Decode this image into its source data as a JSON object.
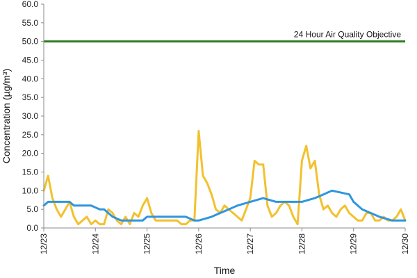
{
  "chart_data": {
    "type": "line",
    "title": "",
    "xlabel": "Time",
    "ylabel": "Concentration (µg/m³)",
    "ylim": [
      0,
      60
    ],
    "yticks": [
      "0.0",
      "5.0",
      "10.0",
      "15.0",
      "20.0",
      "25.0",
      "30.0",
      "35.0",
      "40.0",
      "45.0",
      "50.0",
      "55.0",
      "60.0"
    ],
    "xlim": [
      "12/23",
      "12/30"
    ],
    "xticks": [
      "12/23",
      "12/24",
      "12/25",
      "12/26",
      "12/27",
      "12/28",
      "12/29",
      "12/30"
    ],
    "grid": false,
    "objective": {
      "value": 50,
      "label": "24 Hour Air Quality Objective",
      "color": "#2e7d1e"
    },
    "series": [
      {
        "color": "#f2c12e",
        "kind": "hourly",
        "x": [
          "12/23 00:00",
          "12/23 02:00",
          "12/23 04:00",
          "12/23 06:00",
          "12/23 08:00",
          "12/23 10:00",
          "12/23 12:00",
          "12/23 14:00",
          "12/23 16:00",
          "12/23 18:00",
          "12/23 20:00",
          "12/23 22:00",
          "12/24 00:00",
          "12/24 02:00",
          "12/24 04:00",
          "12/24 06:00",
          "12/24 08:00",
          "12/24 10:00",
          "12/24 12:00",
          "12/24 14:00",
          "12/24 16:00",
          "12/24 18:00",
          "12/24 20:00",
          "12/24 22:00",
          "12/25 00:00",
          "12/25 02:00",
          "12/25 04:00",
          "12/25 06:00",
          "12/25 08:00",
          "12/25 10:00",
          "12/25 12:00",
          "12/25 14:00",
          "12/25 16:00",
          "12/25 18:00",
          "12/25 20:00",
          "12/25 22:00",
          "12/26 00:00",
          "12/26 02:00",
          "12/26 04:00",
          "12/26 06:00",
          "12/26 08:00",
          "12/26 10:00",
          "12/26 12:00",
          "12/26 14:00",
          "12/26 16:00",
          "12/26 18:00",
          "12/26 20:00",
          "12/26 22:00",
          "12/27 00:00",
          "12/27 02:00",
          "12/27 04:00",
          "12/27 06:00",
          "12/27 08:00",
          "12/27 10:00",
          "12/27 12:00",
          "12/27 14:00",
          "12/27 16:00",
          "12/27 18:00",
          "12/27 20:00",
          "12/27 22:00",
          "12/28 00:00",
          "12/28 02:00",
          "12/28 04:00",
          "12/28 06:00",
          "12/28 08:00",
          "12/28 10:00",
          "12/28 12:00",
          "12/28 14:00",
          "12/28 16:00",
          "12/28 18:00",
          "12/28 20:00",
          "12/28 22:00",
          "12/29 00:00",
          "12/29 02:00",
          "12/29 04:00",
          "12/29 06:00",
          "12/29 08:00",
          "12/29 10:00",
          "12/29 12:00",
          "12/29 14:00",
          "12/29 16:00",
          "12/29 18:00",
          "12/29 20:00",
          "12/29 22:00",
          "12/30 00:00"
        ],
        "values": [
          10,
          14,
          8,
          5,
          3,
          5,
          7,
          3,
          1,
          2,
          3,
          1,
          2,
          1,
          1,
          5,
          4,
          2,
          1,
          3,
          1,
          4,
          3,
          6,
          8,
          4,
          2,
          2,
          2,
          2,
          2,
          2,
          1,
          1,
          2,
          2,
          26,
          14,
          12,
          9,
          5,
          4,
          6,
          5,
          4,
          3,
          2,
          5,
          8,
          18,
          17,
          17,
          6,
          3,
          4,
          6,
          7,
          6,
          3,
          1,
          18,
          22,
          16,
          18,
          9,
          5,
          6,
          4,
          3,
          5,
          6,
          4,
          3,
          2,
          2,
          4,
          4,
          2,
          2,
          3,
          2,
          2,
          3,
          5,
          2
        ]
      },
      {
        "color": "#2f95de",
        "kind": "24-hour rolling",
        "x": [
          "12/23 00:00",
          "12/23 02:00",
          "12/23 12:00",
          "12/23 14:00",
          "12/23 22:00",
          "12/24 02:00",
          "12/24 04:00",
          "12/24 06:00",
          "12/24 08:00",
          "12/24 12:00",
          "12/24 18:00",
          "12/24 22:00",
          "12/25 00:00",
          "12/25 06:00",
          "12/25 12:00",
          "12/25 18:00",
          "12/25 22:00",
          "12/26 00:00",
          "12/26 06:00",
          "12/26 10:00",
          "12/26 14:00",
          "12/26 18:00",
          "12/27 00:00",
          "12/27 06:00",
          "12/27 12:00",
          "12/27 18:00",
          "12/28 00:00",
          "12/28 06:00",
          "12/28 10:00",
          "12/28 14:00",
          "12/28 22:00",
          "12/29 00:00",
          "12/29 04:00",
          "12/29 08:00",
          "12/29 12:00",
          "12/29 18:00",
          "12/30 00:00"
        ],
        "values": [
          6,
          7,
          7,
          6,
          6,
          5,
          5,
          4,
          3,
          2,
          2,
          2,
          3,
          3,
          3,
          3,
          2,
          2,
          3,
          4,
          5,
          6,
          7,
          8,
          7,
          7,
          7,
          8,
          9,
          10,
          9,
          7,
          5,
          4,
          3,
          2,
          2
        ]
      }
    ]
  }
}
